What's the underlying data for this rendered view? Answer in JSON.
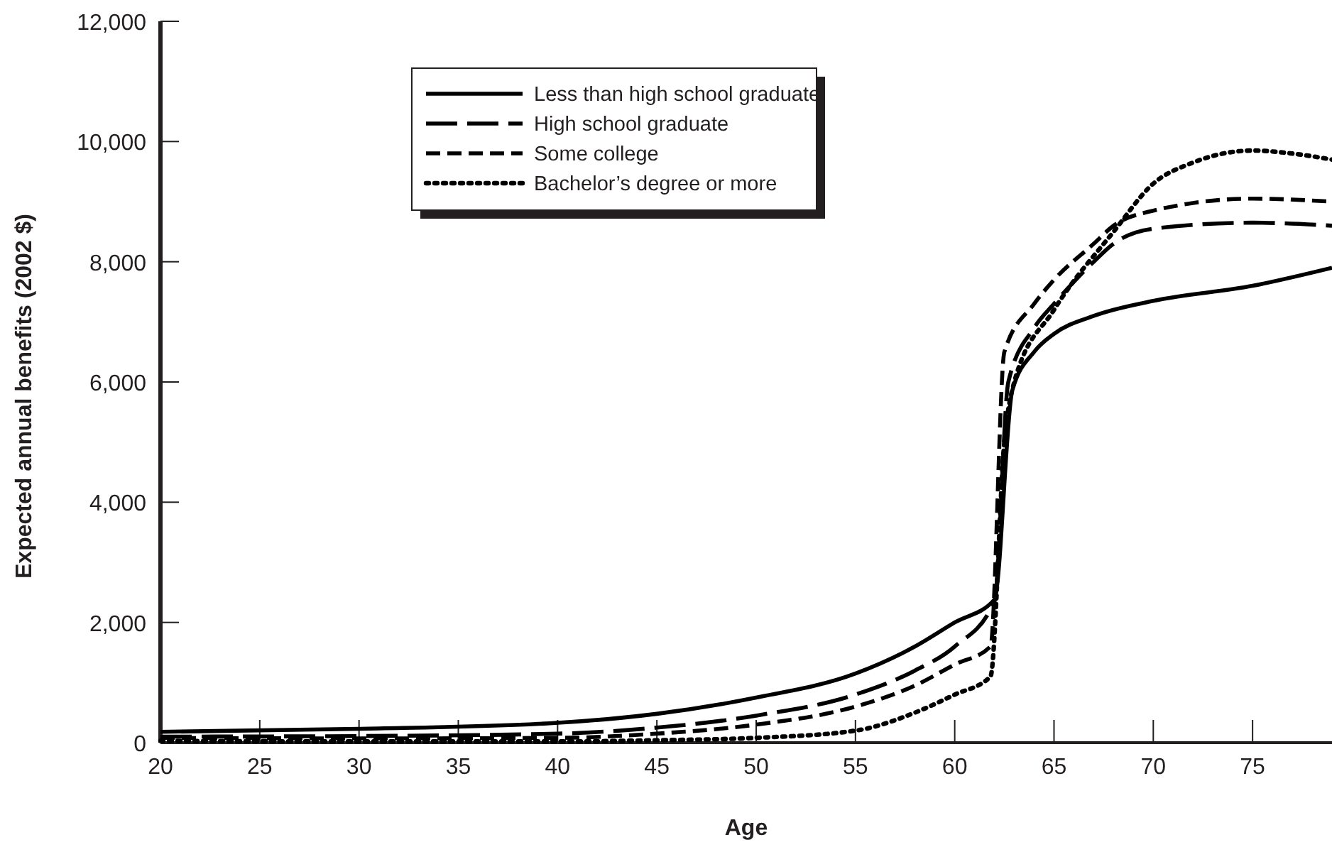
{
  "chart_data": {
    "type": "line",
    "xlabel": "Age",
    "ylabel": "Expected annual benefits (2002 $)",
    "xlim": [
      20,
      79
    ],
    "xticks": [
      20,
      25,
      30,
      35,
      40,
      45,
      50,
      55,
      60,
      65,
      70,
      75
    ],
    "ylim": [
      0,
      12000
    ],
    "yticks": [
      {
        "value": 0,
        "label": "0"
      },
      {
        "value": 2000,
        "label": "2,000"
      },
      {
        "value": 4000,
        "label": "4,000"
      },
      {
        "value": 6000,
        "label": "6,000"
      },
      {
        "value": 8000,
        "label": "8,000"
      },
      {
        "value": 10000,
        "label": "10,000"
      },
      {
        "value": 12000,
        "label": "12,000"
      }
    ],
    "grid": false,
    "legend": "top",
    "marker": "none",
    "series": [
      {
        "name": "Less than high school graduate",
        "color": "#000000",
        "line_style": "solid",
        "x": [
          20,
          30,
          40,
          45,
          50,
          55,
          58,
          60,
          62,
          62.9,
          64,
          65,
          67,
          70,
          75,
          79
        ],
        "values": [
          180,
          230,
          330,
          480,
          750,
          1150,
          1600,
          2000,
          2380,
          5860,
          6500,
          6800,
          7100,
          7350,
          7600,
          7900
        ]
      },
      {
        "name": "High school graduate",
        "color": "#000000",
        "line_style": "longdash",
        "x": [
          20,
          30,
          40,
          45,
          50,
          55,
          58,
          60,
          62,
          62.7,
          64,
          65,
          67,
          68,
          70,
          75,
          79
        ],
        "values": [
          100,
          110,
          150,
          250,
          450,
          800,
          1200,
          1600,
          2350,
          6000,
          6900,
          7300,
          8000,
          8300,
          8550,
          8650,
          8600
        ]
      },
      {
        "name": "Some college",
        "color": "#000000",
        "line_style": "dashed",
        "x": [
          20,
          30,
          40,
          45,
          50,
          55,
          58,
          60,
          61.8,
          62.5,
          64,
          65,
          67,
          68,
          70,
          75,
          79
        ],
        "values": [
          80,
          70,
          80,
          150,
          300,
          600,
          950,
          1300,
          1600,
          6500,
          7300,
          7700,
          8300,
          8600,
          8850,
          9050,
          9000
        ]
      },
      {
        "name": "Bachelor’s degree or more",
        "color": "#000000",
        "line_style": "dotted",
        "x": [
          20,
          30,
          40,
          45,
          50,
          55,
          58,
          60,
          61.8,
          62.5,
          63,
          65,
          68,
          70,
          72,
          75,
          77,
          79
        ],
        "values": [
          30,
          20,
          20,
          40,
          80,
          200,
          500,
          800,
          1100,
          5000,
          6000,
          7200,
          8500,
          9300,
          9650,
          9850,
          9800,
          9700
        ]
      }
    ]
  }
}
